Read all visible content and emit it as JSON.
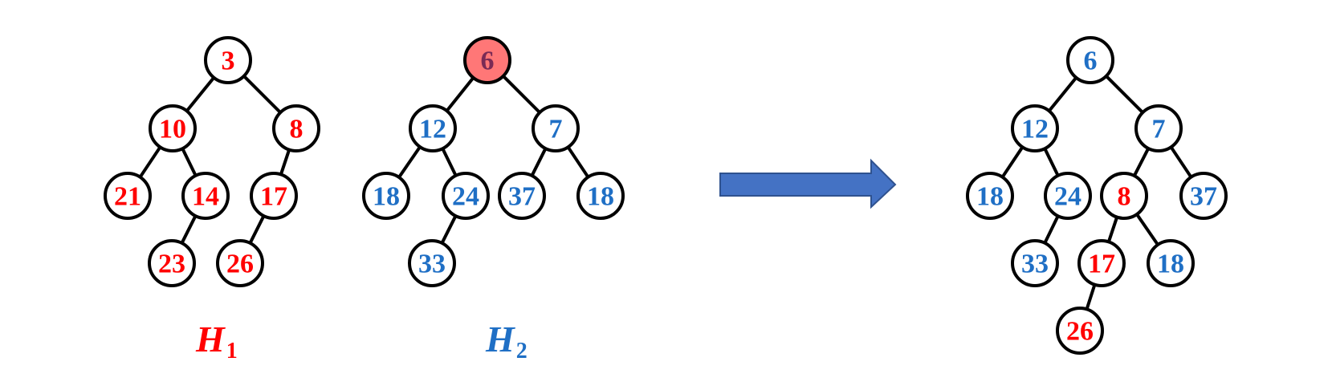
{
  "colors": {
    "red": "#ff0000",
    "blue": "#1f6fc5",
    "highlight_fill": "#ff7777",
    "highlight_text": "#7a2a55",
    "arrow_fill": "#4472c4",
    "arrow_stroke": "#2f528f",
    "stroke": "#000000"
  },
  "heaps": [
    {
      "id": "h1",
      "label": {
        "base": "H",
        "sub": "1"
      },
      "label_color": "red",
      "nodes": [
        {
          "id": "a",
          "value": "3",
          "color": "red",
          "parent": null
        },
        {
          "id": "b",
          "value": "10",
          "color": "red",
          "parent": "a"
        },
        {
          "id": "c",
          "value": "8",
          "color": "red",
          "parent": "a"
        },
        {
          "id": "d",
          "value": "21",
          "color": "red",
          "parent": "b"
        },
        {
          "id": "e",
          "value": "14",
          "color": "red",
          "parent": "b"
        },
        {
          "id": "f",
          "value": "17",
          "color": "red",
          "parent": "c"
        },
        {
          "id": "g",
          "value": "23",
          "color": "red",
          "parent": "e"
        },
        {
          "id": "h",
          "value": "26",
          "color": "red",
          "parent": "f"
        }
      ]
    },
    {
      "id": "h2",
      "label": {
        "base": "H",
        "sub": "2"
      },
      "label_color": "blue",
      "nodes": [
        {
          "id": "a",
          "value": "6",
          "color": "highlight",
          "parent": null
        },
        {
          "id": "b",
          "value": "12",
          "color": "blue",
          "parent": "a"
        },
        {
          "id": "c",
          "value": "7",
          "color": "blue",
          "parent": "a"
        },
        {
          "id": "d",
          "value": "18",
          "color": "blue",
          "parent": "b"
        },
        {
          "id": "e",
          "value": "24",
          "color": "blue",
          "parent": "b"
        },
        {
          "id": "f",
          "value": "37",
          "color": "blue",
          "parent": "c"
        },
        {
          "id": "g",
          "value": "18",
          "color": "blue",
          "parent": "c"
        },
        {
          "id": "h",
          "value": "33",
          "color": "blue",
          "parent": "e"
        }
      ]
    },
    {
      "id": "result",
      "label": null,
      "nodes": [
        {
          "id": "a",
          "value": "6",
          "color": "blue",
          "parent": null
        },
        {
          "id": "b",
          "value": "12",
          "color": "blue",
          "parent": "a"
        },
        {
          "id": "c",
          "value": "7",
          "color": "blue",
          "parent": "a"
        },
        {
          "id": "d",
          "value": "18",
          "color": "blue",
          "parent": "b"
        },
        {
          "id": "e",
          "value": "24",
          "color": "blue",
          "parent": "b"
        },
        {
          "id": "f",
          "value": "8",
          "color": "red",
          "parent": "c"
        },
        {
          "id": "g",
          "value": "37",
          "color": "blue",
          "parent": "c"
        },
        {
          "id": "h",
          "value": "33",
          "color": "blue",
          "parent": "e"
        },
        {
          "id": "i",
          "value": "17",
          "color": "red",
          "parent": "f"
        },
        {
          "id": "j",
          "value": "18",
          "color": "blue",
          "parent": "f"
        },
        {
          "id": "k",
          "value": "26",
          "color": "red",
          "parent": "i"
        }
      ]
    }
  ],
  "arrow": {
    "icon": "right-arrow-icon"
  }
}
